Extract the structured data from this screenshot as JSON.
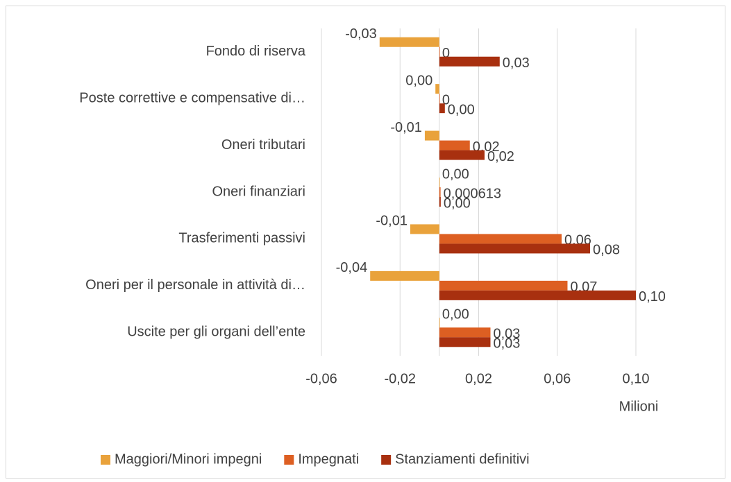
{
  "chart_data": {
    "type": "hbar",
    "categories": [
      "Fondo di riserva",
      "Poste correttive e compensative di…",
      "Oneri tributari",
      "Oneri finanziari",
      "Trasferimenti passivi",
      "Oneri per il personale in attività di…",
      "Uscite per gli organi dell’ente"
    ],
    "series": [
      {
        "name": "Maggiori/Minori impegni",
        "color": "#E9A23B",
        "values": [
          -0.0304,
          -0.002,
          -0.0074,
          0,
          -0.0148,
          -0.0352,
          0
        ],
        "value_labels": [
          "-0,03",
          "0,00",
          "-0,01",
          "0,00",
          "-0,01",
          "-0,04",
          "0,00"
        ]
      },
      {
        "name": "Impegnati",
        "color": "#DD5F22",
        "values": [
          0,
          0,
          0.0155,
          0.000613,
          0.0622,
          0.0652,
          0.026
        ],
        "value_labels": [
          "0",
          "0",
          "0,02",
          "0,000613",
          "0,06",
          "0,07",
          "0,03"
        ]
      },
      {
        "name": "Stanziamenti definitivi",
        "color": "#A8300F",
        "values": [
          0.0307,
          0.0028,
          0.023,
          0.0007,
          0.0767,
          0.1,
          0.026
        ],
        "value_labels": [
          "0,03",
          "0,00",
          "0,02",
          "0,00",
          "0,08",
          "0,10",
          "0,03"
        ]
      }
    ],
    "xlim": [
      -0.06,
      0.1
    ],
    "xticks": [
      {
        "value": -0.06,
        "label": "-0,06"
      },
      {
        "value": -0.02,
        "label": "-0,02"
      },
      {
        "value": 0.02,
        "label": "0,02"
      },
      {
        "value": 0.06,
        "label": "0,06"
      },
      {
        "value": 0.1,
        "label": "0,10"
      }
    ],
    "x_label": "Milioni",
    "grid": true,
    "legend": "bottom"
  }
}
